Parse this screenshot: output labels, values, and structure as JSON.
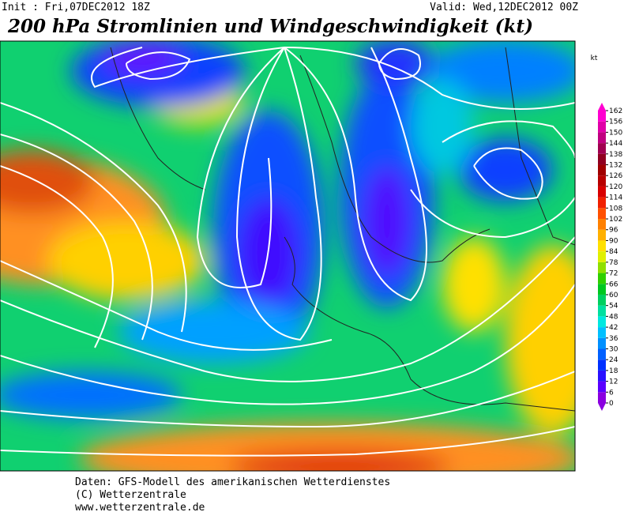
{
  "header": {
    "init": "Init : Fri,07DEC2012 18Z",
    "valid": "Valid: Wed,12DEC2012 00Z",
    "title": "200 hPa Stromlinien und Windgeschwindigkeit (kt)"
  },
  "colorbar": {
    "unit": "kt",
    "ticks": [
      0,
      6,
      12,
      18,
      24,
      30,
      36,
      42,
      48,
      54,
      60,
      66,
      72,
      78,
      84,
      90,
      96,
      102,
      108,
      114,
      120,
      126,
      132,
      138,
      144,
      150,
      156,
      162
    ],
    "colors": [
      "#8a00e0",
      "#5a00ff",
      "#2a10ff",
      "#0030ff",
      "#0060ff",
      "#0090ff",
      "#00c0ff",
      "#00e8e0",
      "#00e0a0",
      "#00d060",
      "#00c820",
      "#30d000",
      "#90e000",
      "#e0f000",
      "#ffe000",
      "#ffb000",
      "#ff8000",
      "#ff5000",
      "#f02000",
      "#d80000",
      "#b80000",
      "#a00000",
      "#900020",
      "#a00050",
      "#c00080",
      "#e000a8",
      "#ff00d0"
    ]
  },
  "footer": {
    "lines": [
      "Daten: GFS-Modell des amerikanischen Wetterdienstes",
      "(C) Wetterzentrale",
      "www.wetterzentrale.de"
    ]
  }
}
